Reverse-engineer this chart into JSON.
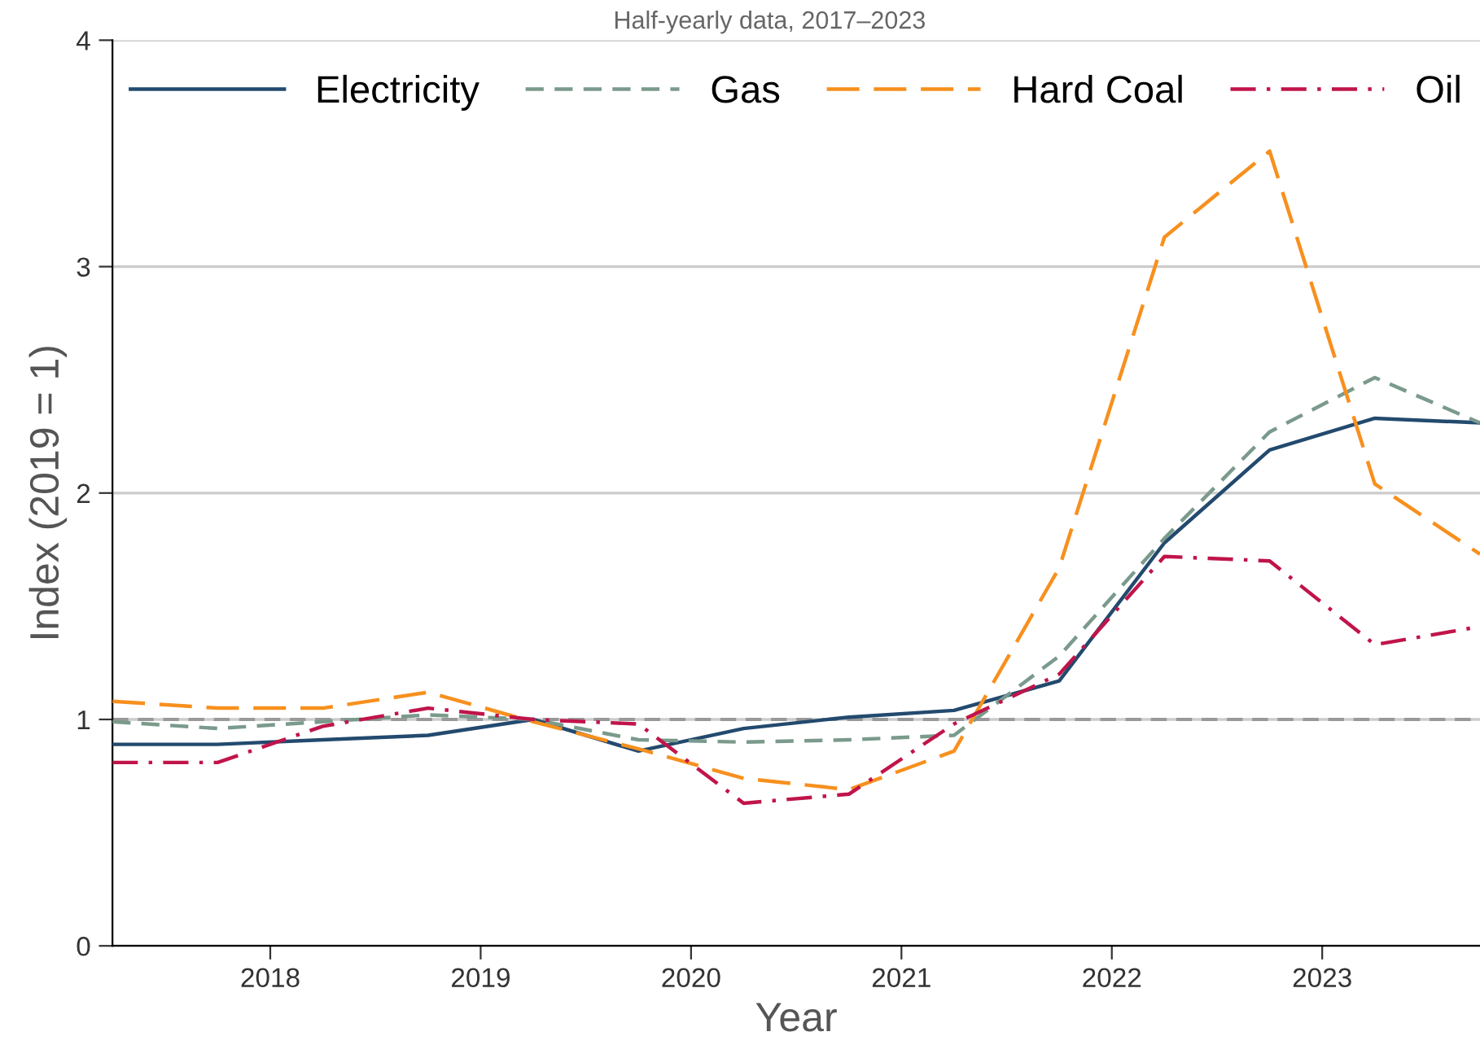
{
  "chart_data": {
    "type": "line",
    "subtitle": "Half-yearly data, 2017–2023",
    "xlabel": "Year",
    "ylabel": "Index (2019 = 1)",
    "x": [
      2017.25,
      2017.75,
      2018.25,
      2018.75,
      2019.25,
      2019.75,
      2020.25,
      2020.75,
      2021.25,
      2021.75,
      2022.25,
      2022.75,
      2023.25,
      2023.75
    ],
    "series": [
      {
        "name": "Electricity",
        "color": "#234a6e",
        "line_style": "solid",
        "values": [
          0.89,
          0.89,
          0.91,
          0.93,
          1.0,
          0.86,
          0.96,
          1.01,
          1.04,
          1.17,
          1.78,
          2.19,
          2.33,
          2.31
        ]
      },
      {
        "name": "Gas",
        "color": "#7a9a8c",
        "line_style": "dashed",
        "values": [
          0.99,
          0.96,
          0.99,
          1.02,
          1.0,
          0.91,
          0.9,
          0.91,
          0.93,
          1.28,
          1.8,
          2.27,
          2.51,
          2.31
        ]
      },
      {
        "name": "Hard Coal",
        "color": "#f7901e",
        "line_style": "longdash",
        "values": [
          1.08,
          1.05,
          1.05,
          1.12,
          0.99,
          0.87,
          0.74,
          0.69,
          0.86,
          1.67,
          3.13,
          3.51,
          2.04,
          1.73
        ]
      },
      {
        "name": "Oil",
        "color": "#c0144a",
        "line_style": "dashdot",
        "values": [
          0.81,
          0.81,
          0.97,
          1.05,
          1.0,
          0.98,
          0.63,
          0.67,
          0.98,
          1.2,
          1.72,
          1.7,
          1.33,
          1.41
        ]
      }
    ],
    "xlim": [
      2017.25,
      2023.75
    ],
    "xticks": [
      2018,
      2019,
      2020,
      2021,
      2022,
      2023
    ],
    "ylim": [
      0,
      4
    ],
    "yticks": [
      0,
      1,
      2,
      3,
      4
    ],
    "ref_lines": [
      {
        "axis": "y",
        "value": 1,
        "color": "#999999",
        "line_style": "dashed"
      }
    ],
    "grid": "y",
    "legend": "top",
    "marker": "none"
  }
}
